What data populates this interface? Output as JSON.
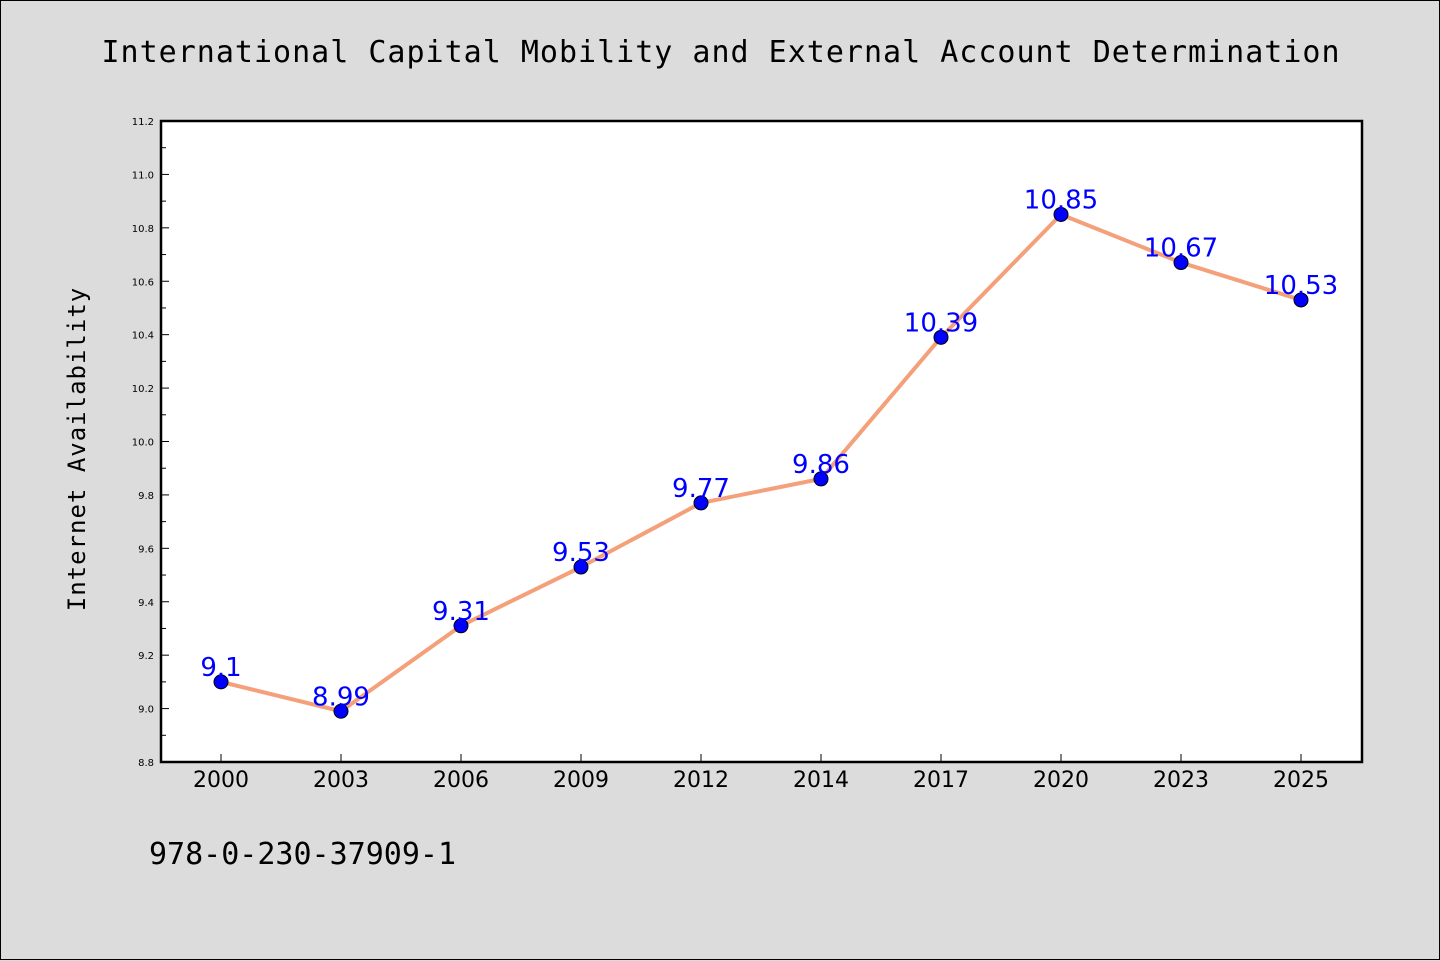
{
  "figure": {
    "background": "#dcdcdc",
    "footer_code": "978-0-230-37909-1"
  },
  "chart_data": {
    "type": "line",
    "title": "International Capital Mobility and External Account Determination",
    "xlabel": "",
    "ylabel": "Internet Availability",
    "categories": [
      "2000",
      "2003",
      "2006",
      "2009",
      "2012",
      "2014",
      "2017",
      "2020",
      "2023",
      "2025"
    ],
    "series": [
      {
        "values": [
          9.1,
          8.99,
          9.31,
          9.53,
          9.77,
          9.86,
          10.39,
          10.85,
          10.67,
          10.53
        ],
        "line_color": "#f4a07a",
        "marker_color": "#0000ff",
        "label_color": "#0000ff"
      }
    ],
    "ylim": [
      8.8,
      11.2
    ],
    "yticks": [
      8.8,
      9.0,
      9.2,
      9.4,
      9.6,
      9.8,
      10.0,
      10.2,
      10.4,
      10.6,
      10.8,
      11.0,
      11.2
    ],
    "ytick_labels": [
      "8.8",
      "9.0",
      "9.2",
      "9.4",
      "9.6",
      "9.8",
      "10.0",
      "10.2",
      "10.4",
      "10.6",
      "10.8",
      "11.0",
      "11.2"
    ],
    "grid": false,
    "plot_background": "#ffffff",
    "data_labels": true
  }
}
